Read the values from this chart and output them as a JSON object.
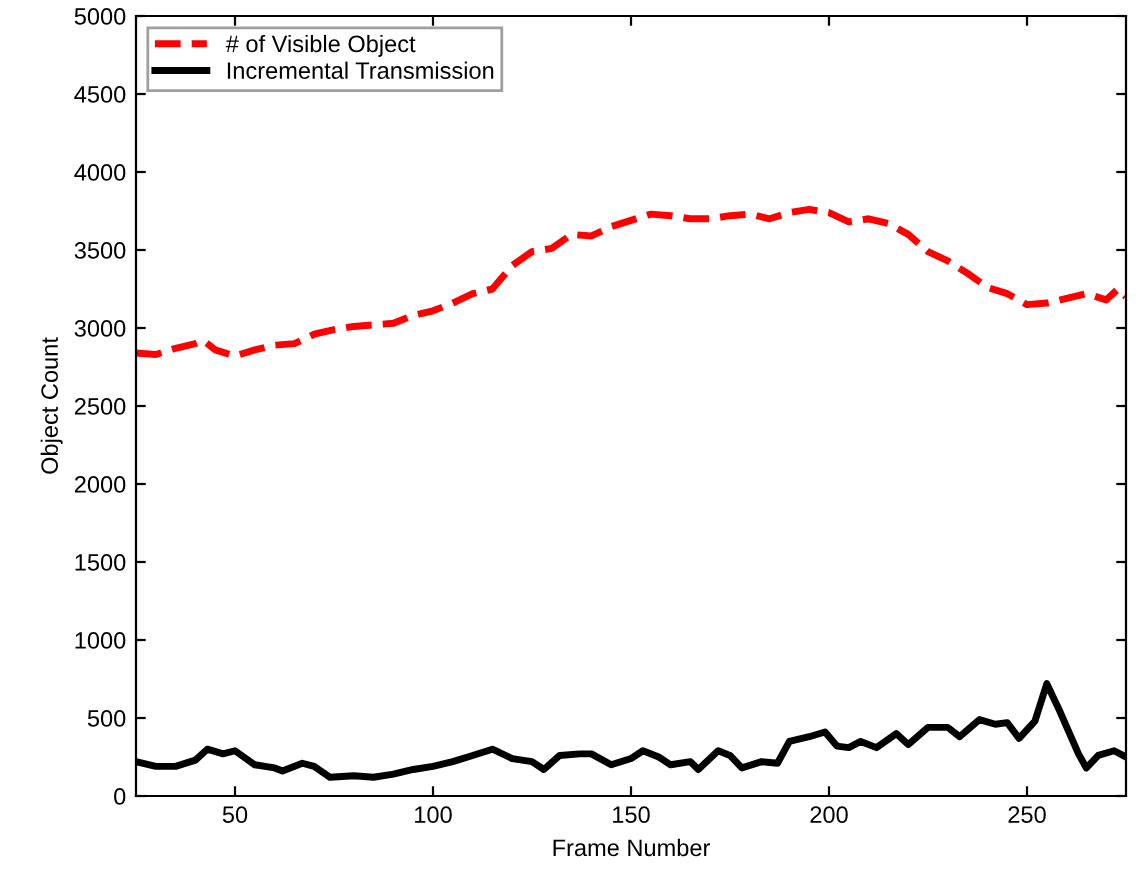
{
  "chart_data": {
    "type": "line",
    "xlabel": "Frame Number",
    "ylabel": "Object Count",
    "xlim": [
      25,
      275
    ],
    "ylim": [
      0,
      5000
    ],
    "xticks": [
      50,
      100,
      150,
      200,
      250
    ],
    "yticks": [
      0,
      500,
      1000,
      1500,
      2000,
      2500,
      3000,
      3500,
      4000,
      4500,
      5000
    ],
    "grid": false,
    "legend": "top left",
    "series": [
      {
        "name": "# of Visible Object",
        "color": "#ff0000",
        "line_style": "dashed",
        "x": [
          25,
          30,
          35,
          40,
          42,
          45,
          50,
          55,
          60,
          65,
          70,
          75,
          80,
          85,
          90,
          95,
          100,
          105,
          110,
          115,
          120,
          125,
          130,
          135,
          140,
          145,
          150,
          155,
          160,
          165,
          170,
          175,
          180,
          185,
          190,
          195,
          200,
          205,
          210,
          215,
          220,
          225,
          230,
          235,
          240,
          245,
          250,
          255,
          260,
          265,
          270,
          273,
          275
        ],
        "values": [
          2840,
          2830,
          2870,
          2900,
          2920,
          2860,
          2820,
          2860,
          2890,
          2900,
          2960,
          2990,
          3010,
          3020,
          3030,
          3080,
          3110,
          3160,
          3220,
          3250,
          3400,
          3490,
          3510,
          3600,
          3590,
          3650,
          3690,
          3730,
          3720,
          3700,
          3700,
          3720,
          3730,
          3700,
          3740,
          3760,
          3740,
          3680,
          3700,
          3670,
          3600,
          3490,
          3430,
          3350,
          3260,
          3220,
          3150,
          3160,
          3190,
          3220,
          3180,
          3250,
          3200
        ]
      },
      {
        "name": "Incremental Transmission",
        "color": "#000000",
        "line_style": "solid",
        "x": [
          25,
          30,
          35,
          40,
          43,
          47,
          50,
          55,
          60,
          62,
          67,
          70,
          74,
          80,
          85,
          90,
          95,
          100,
          105,
          110,
          115,
          120,
          125,
          128,
          132,
          137,
          140,
          145,
          150,
          153,
          157,
          160,
          165,
          167,
          172,
          175,
          178,
          183,
          187,
          190,
          195,
          199,
          202,
          205,
          208,
          212,
          217,
          220,
          225,
          230,
          233,
          238,
          242,
          245,
          248,
          252,
          255,
          258,
          263,
          265,
          268,
          272,
          275
        ],
        "values": [
          220,
          190,
          190,
          230,
          300,
          270,
          290,
          200,
          180,
          160,
          210,
          190,
          120,
          130,
          120,
          140,
          170,
          190,
          220,
          260,
          300,
          240,
          220,
          170,
          260,
          270,
          270,
          200,
          240,
          290,
          250,
          200,
          220,
          170,
          290,
          260,
          180,
          220,
          210,
          350,
          380,
          410,
          320,
          310,
          350,
          310,
          400,
          330,
          440,
          440,
          380,
          490,
          460,
          470,
          370,
          480,
          720,
          560,
          270,
          180,
          260,
          290,
          250
        ]
      }
    ]
  }
}
